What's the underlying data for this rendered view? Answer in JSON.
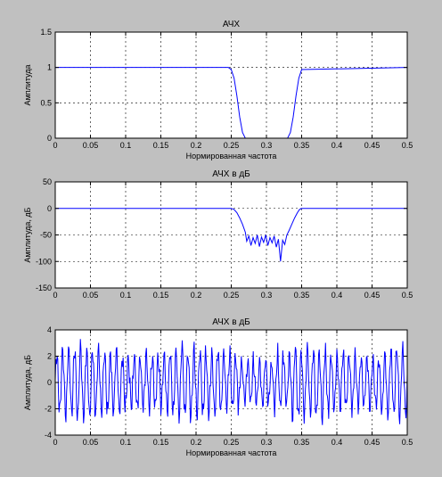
{
  "chart_data": [
    {
      "type": "line",
      "title": "АЧХ",
      "xlabel": "Нормированная частота",
      "ylabel": "Амплитуда",
      "xlim": [
        0,
        0.5
      ],
      "ylim": [
        0,
        1.5
      ],
      "x_ticks": [
        "0",
        "0.05",
        "0.1",
        "0.15",
        "0.2",
        "0.25",
        "0.3",
        "0.35",
        "0.4",
        "0.45",
        "0.5"
      ],
      "y_ticks": [
        "0",
        "0.5",
        "1",
        "1.5"
      ],
      "grid": true,
      "color": "#0000ff",
      "series": [
        {
          "x": [
            0,
            0.246,
            0.25,
            0.254,
            0.258,
            0.262,
            0.266,
            0.27,
            0.33,
            0.334,
            0.338,
            0.342,
            0.346,
            0.35,
            0.5
          ],
          "y": [
            1,
            1,
            0.97,
            0.85,
            0.6,
            0.3,
            0.08,
            0,
            0,
            0.08,
            0.3,
            0.6,
            0.85,
            0.97,
            1
          ]
        }
      ]
    },
    {
      "type": "line",
      "title": "АЧХ в дБ",
      "xlabel": "",
      "ylabel": "Амплитуда, дБ",
      "xlim": [
        0,
        0.5
      ],
      "ylim": [
        -150,
        50
      ],
      "x_ticks": [
        "0",
        "0.05",
        "0.1",
        "0.15",
        "0.2",
        "0.25",
        "0.3",
        "0.35",
        "0.4",
        "0.45",
        "0.5"
      ],
      "y_ticks": [
        "-150",
        "-100",
        "-50",
        "0",
        "50"
      ],
      "grid": true,
      "color": "#0000ff",
      "series": [
        {
          "x": [
            0,
            0.25,
            0.254,
            0.258,
            0.262,
            0.266,
            0.27,
            0.272,
            0.275,
            0.278,
            0.281,
            0.284,
            0.287,
            0.29,
            0.293,
            0.296,
            0.299,
            0.302,
            0.305,
            0.308,
            0.311,
            0.314,
            0.317,
            0.32,
            0.323,
            0.326,
            0.329,
            0.332,
            0.336,
            0.34,
            0.344,
            0.347,
            0.35,
            0.5
          ],
          "y": [
            0,
            0,
            -2,
            -8,
            -18,
            -30,
            -45,
            -62,
            -52,
            -70,
            -55,
            -66,
            -50,
            -72,
            -54,
            -64,
            -50,
            -70,
            -55,
            -65,
            -52,
            -73,
            -58,
            -100,
            -60,
            -68,
            -50,
            -42,
            -30,
            -18,
            -8,
            -2,
            0,
            0
          ]
        }
      ]
    },
    {
      "type": "line",
      "title": "АЧХ в дБ",
      "xlabel": "Нормированная частота",
      "ylabel": "Амплитуда, дБ",
      "xlim": [
        0,
        0.5
      ],
      "ylim": [
        -4,
        4
      ],
      "x_ticks": [
        "0",
        "0.05",
        "0.1",
        "0.15",
        "0.2",
        "0.25",
        "0.3",
        "0.35",
        "0.4",
        "0.45",
        "0.5"
      ],
      "y_ticks": [
        "-4",
        "-2",
        "0",
        "2",
        "4"
      ],
      "grid": true,
      "color": "#0000ff",
      "series": [
        {
          "description_only_in_script": true
        }
      ]
    }
  ]
}
